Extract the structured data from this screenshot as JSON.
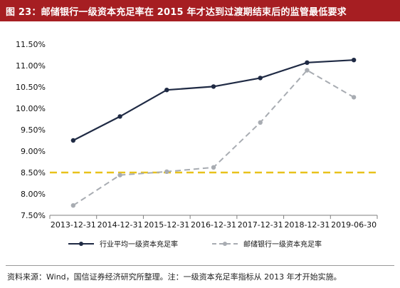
{
  "title": "图 23：邮储银行一级资本充足率在 2015 年才达到过渡期结束后的监管最低要求",
  "source_note": "资料来源：Wind，国信证券经济研究所整理。注：一级资本充足率指标从 2013 年才开始实施。",
  "colors": {
    "title_bg": "#a61e22",
    "industry_line": "#1f2a44",
    "psbc_line": "#a8acb2",
    "requirement_line": "#e8c21b"
  },
  "chart_data": {
    "type": "line",
    "categories": [
      "2013-12-31",
      "2014-12-31",
      "2015-12-31",
      "2016-12-31",
      "2017-12-31",
      "2018-12-31",
      "2019-06-30"
    ],
    "y_ticks": [
      "7.50%",
      "8.00%",
      "8.50%",
      "9.00%",
      "9.50%",
      "10.00%",
      "10.50%",
      "11.00%",
      "11.50%"
    ],
    "ylim": [
      7.5,
      11.5
    ],
    "series": [
      {
        "name": "行业平均一级资本充足率",
        "values": [
          9.25,
          9.81,
          10.43,
          10.51,
          10.71,
          11.07,
          11.13
        ],
        "style": "solid",
        "color": "#1f2a44"
      },
      {
        "name": "邮储银行一级资本充足率",
        "values": [
          7.73,
          8.44,
          8.52,
          8.62,
          9.67,
          10.89,
          10.26
        ],
        "style": "dashed",
        "color": "#a8acb2"
      }
    ],
    "reference_line": {
      "value": 8.5,
      "style": "dashed",
      "color": "#e8c21b"
    },
    "legend": "bottom",
    "grid": false
  }
}
